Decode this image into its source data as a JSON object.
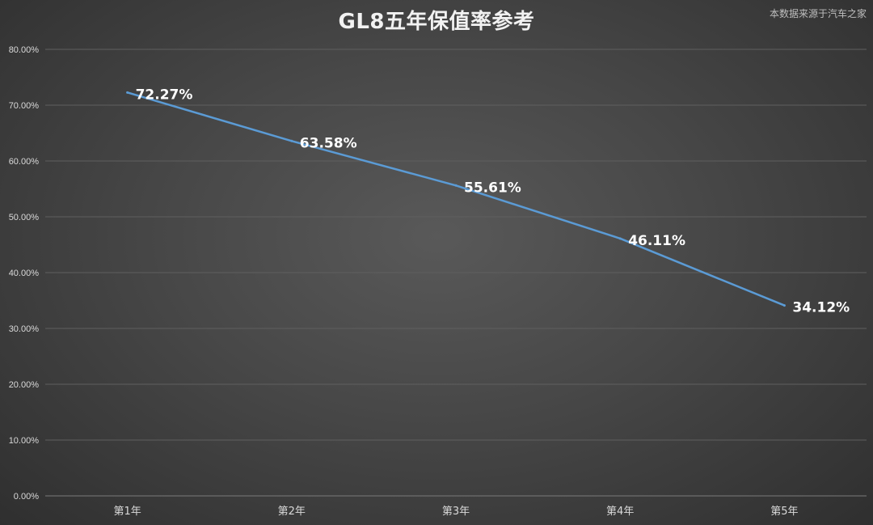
{
  "source_note": "本数据来源于汽车之家",
  "colors": {
    "line": "#5b9bd5",
    "grid": "#5f5f5f",
    "text": "#d9d9d9",
    "label": "#ffffff"
  },
  "chart_data": {
    "type": "line",
    "title": "GL8五年保值率参考",
    "xlabel": "",
    "ylabel": "",
    "categories": [
      "第1年",
      "第2年",
      "第3年",
      "第4年",
      "第5年"
    ],
    "series": [
      {
        "values": [
          72.27,
          63.58,
          55.61,
          46.11,
          34.12
        ]
      }
    ],
    "data_labels": [
      "72.27%",
      "63.58%",
      "55.61%",
      "46.11%",
      "34.12%"
    ],
    "ylim": [
      0,
      80
    ],
    "y_ticks": [
      0,
      10,
      20,
      30,
      40,
      50,
      60,
      70,
      80
    ],
    "y_tick_labels": [
      "0.00%",
      "10.00%",
      "20.00%",
      "30.00%",
      "40.00%",
      "50.00%",
      "60.00%",
      "70.00%",
      "80.00%"
    ],
    "grid": true,
    "legend": "none"
  }
}
